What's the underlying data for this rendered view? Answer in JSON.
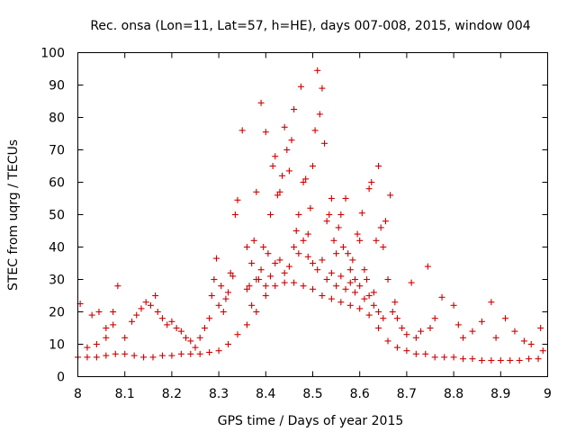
{
  "chart_data": {
    "type": "scatter",
    "title": "Rec. onsa (Lon=11, Lat=57, h=HE), days 007-008, 2015, window 004",
    "xlabel": "GPS time / Days of year 2015",
    "ylabel": "STEC from uqrg / TECUs",
    "xlim": [
      8,
      9
    ],
    "ylim": [
      0,
      100
    ],
    "xticks": [
      "8",
      "8.1",
      "8.2",
      "8.3",
      "8.4",
      "8.5",
      "8.6",
      "8.7",
      "8.8",
      "8.9",
      "9"
    ],
    "yticks": [
      "0",
      "10",
      "20",
      "30",
      "40",
      "50",
      "60",
      "70",
      "80",
      "90",
      "100"
    ],
    "marker": "+",
    "color": "#cc0000",
    "grid": false,
    "points": [
      [
        8.005,
        22.5
      ],
      [
        8.03,
        19
      ],
      [
        8.045,
        20
      ],
      [
        8.06,
        15
      ],
      [
        8.075,
        20
      ],
      [
        8.085,
        28
      ],
      [
        8.075,
        16
      ],
      [
        8.06,
        12
      ],
      [
        8.04,
        10
      ],
      [
        8.02,
        9
      ],
      [
        8.1,
        12
      ],
      [
        8.115,
        17
      ],
      [
        8.125,
        19
      ],
      [
        8.135,
        21
      ],
      [
        8.145,
        23
      ],
      [
        8.155,
        22
      ],
      [
        8.165,
        25
      ],
      [
        8.17,
        20
      ],
      [
        8.18,
        18
      ],
      [
        8.19,
        16
      ],
      [
        8.2,
        17
      ],
      [
        8.21,
        15
      ],
      [
        8.22,
        14
      ],
      [
        8.23,
        12
      ],
      [
        8.24,
        11
      ],
      [
        8.25,
        9
      ],
      [
        8.26,
        12
      ],
      [
        8.27,
        15
      ],
      [
        8.28,
        18
      ],
      [
        8.285,
        25
      ],
      [
        8.29,
        30
      ],
      [
        8.295,
        36.5
      ],
      [
        8.3,
        22
      ],
      [
        8.305,
        28
      ],
      [
        8.31,
        20
      ],
      [
        8.315,
        24
      ],
      [
        8.32,
        26
      ],
      [
        8.325,
        32
      ],
      [
        8.33,
        31
      ],
      [
        8.335,
        50
      ],
      [
        8.34,
        54.5
      ],
      [
        8.35,
        76
      ],
      [
        8.36,
        40
      ],
      [
        8.365,
        28
      ],
      [
        8.37,
        35
      ],
      [
        8.375,
        42
      ],
      [
        8.38,
        57
      ],
      [
        8.385,
        30
      ],
      [
        8.39,
        84.5
      ],
      [
        8.395,
        40
      ],
      [
        8.4,
        75.5
      ],
      [
        8.405,
        38
      ],
      [
        8.41,
        50
      ],
      [
        8.415,
        65
      ],
      [
        8.42,
        68
      ],
      [
        8.425,
        56
      ],
      [
        8.43,
        57
      ],
      [
        8.435,
        62
      ],
      [
        8.44,
        77
      ],
      [
        8.445,
        70
      ],
      [
        8.45,
        63.5
      ],
      [
        8.455,
        73
      ],
      [
        8.46,
        82.5
      ],
      [
        8.465,
        45
      ],
      [
        8.47,
        50
      ],
      [
        8.475,
        89.5
      ],
      [
        8.48,
        60
      ],
      [
        8.485,
        61
      ],
      [
        8.49,
        44
      ],
      [
        8.495,
        52
      ],
      [
        8.5,
        65
      ],
      [
        8.505,
        76
      ],
      [
        8.51,
        94.5
      ],
      [
        8.515,
        81
      ],
      [
        8.52,
        89
      ],
      [
        8.525,
        72
      ],
      [
        8.53,
        48
      ],
      [
        8.535,
        50
      ],
      [
        8.54,
        55
      ],
      [
        8.545,
        42
      ],
      [
        8.55,
        38
      ],
      [
        8.555,
        46
      ],
      [
        8.56,
        50
      ],
      [
        8.565,
        40
      ],
      [
        8.57,
        55
      ],
      [
        8.575,
        38
      ],
      [
        8.58,
        33
      ],
      [
        8.585,
        36
      ],
      [
        8.59,
        30
      ],
      [
        8.595,
        44
      ],
      [
        8.6,
        42
      ],
      [
        8.605,
        50.5
      ],
      [
        8.61,
        33
      ],
      [
        8.615,
        30
      ],
      [
        8.62,
        58
      ],
      [
        8.625,
        60
      ],
      [
        8.63,
        26
      ],
      [
        8.635,
        42
      ],
      [
        8.64,
        65
      ],
      [
        8.645,
        46
      ],
      [
        8.65,
        40
      ],
      [
        8.655,
        48
      ],
      [
        8.66,
        30
      ],
      [
        8.665,
        56
      ],
      [
        8.67,
        20
      ],
      [
        8.675,
        23
      ],
      [
        8.68,
        18
      ],
      [
        8.69,
        15
      ],
      [
        8.7,
        13
      ],
      [
        8.71,
        29
      ],
      [
        8.72,
        12
      ],
      [
        8.73,
        14
      ],
      [
        8.745,
        34
      ],
      [
        8.75,
        15
      ],
      [
        8.76,
        18
      ],
      [
        8.775,
        24.5
      ],
      [
        8.8,
        22
      ],
      [
        8.81,
        16
      ],
      [
        8.82,
        12
      ],
      [
        8.84,
        14
      ],
      [
        8.86,
        17
      ],
      [
        8.88,
        23
      ],
      [
        8.89,
        12
      ],
      [
        8.91,
        18
      ],
      [
        8.93,
        14
      ],
      [
        8.95,
        11
      ],
      [
        8.965,
        10
      ],
      [
        8.985,
        15
      ],
      [
        8.99,
        8
      ],
      [
        8.36,
        27
      ],
      [
        8.37,
        22
      ],
      [
        8.38,
        30
      ],
      [
        8.39,
        33
      ],
      [
        8.4,
        28
      ],
      [
        8.41,
        31
      ],
      [
        8.42,
        35
      ],
      [
        8.43,
        36
      ],
      [
        8.44,
        32
      ],
      [
        8.45,
        34
      ],
      [
        8.46,
        40
      ],
      [
        8.47,
        38
      ],
      [
        8.48,
        42
      ],
      [
        8.49,
        37
      ],
      [
        8.5,
        35
      ],
      [
        8.51,
        33
      ],
      [
        8.52,
        36
      ],
      [
        8.53,
        30
      ],
      [
        8.54,
        32
      ],
      [
        8.55,
        28
      ],
      [
        8.56,
        31
      ],
      [
        8.57,
        27
      ],
      [
        8.58,
        29
      ],
      [
        8.59,
        26
      ],
      [
        8.6,
        28
      ],
      [
        8.61,
        24
      ],
      [
        8.62,
        25
      ],
      [
        8.63,
        22
      ],
      [
        8.64,
        20
      ],
      [
        8.65,
        18
      ],
      [
        8.0,
        6
      ],
      [
        8.02,
        6
      ],
      [
        8.04,
        6
      ],
      [
        8.06,
        6.5
      ],
      [
        8.08,
        7
      ],
      [
        8.1,
        7
      ],
      [
        8.12,
        6.5
      ],
      [
        8.14,
        6
      ],
      [
        8.16,
        6
      ],
      [
        8.18,
        6.5
      ],
      [
        8.2,
        6.5
      ],
      [
        8.22,
        7
      ],
      [
        8.24,
        7
      ],
      [
        8.26,
        7
      ],
      [
        8.28,
        7.5
      ],
      [
        8.3,
        8
      ],
      [
        8.32,
        10
      ],
      [
        8.34,
        13
      ],
      [
        8.36,
        16
      ],
      [
        8.38,
        20
      ],
      [
        8.4,
        25
      ],
      [
        8.42,
        28
      ],
      [
        8.44,
        29
      ],
      [
        8.46,
        29
      ],
      [
        8.48,
        28
      ],
      [
        8.5,
        27
      ],
      [
        8.52,
        25
      ],
      [
        8.54,
        24
      ],
      [
        8.56,
        23
      ],
      [
        8.58,
        22
      ],
      [
        8.6,
        21
      ],
      [
        8.62,
        19
      ],
      [
        8.64,
        15
      ],
      [
        8.66,
        11
      ],
      [
        8.68,
        9
      ],
      [
        8.7,
        8
      ],
      [
        8.72,
        7
      ],
      [
        8.74,
        7
      ],
      [
        8.76,
        6
      ],
      [
        8.78,
        6
      ],
      [
        8.8,
        6
      ],
      [
        8.82,
        5.5
      ],
      [
        8.84,
        5.5
      ],
      [
        8.86,
        5
      ],
      [
        8.88,
        5
      ],
      [
        8.9,
        5
      ],
      [
        8.92,
        5
      ],
      [
        8.94,
        5
      ],
      [
        8.96,
        5.5
      ],
      [
        8.98,
        5.5
      ]
    ]
  }
}
